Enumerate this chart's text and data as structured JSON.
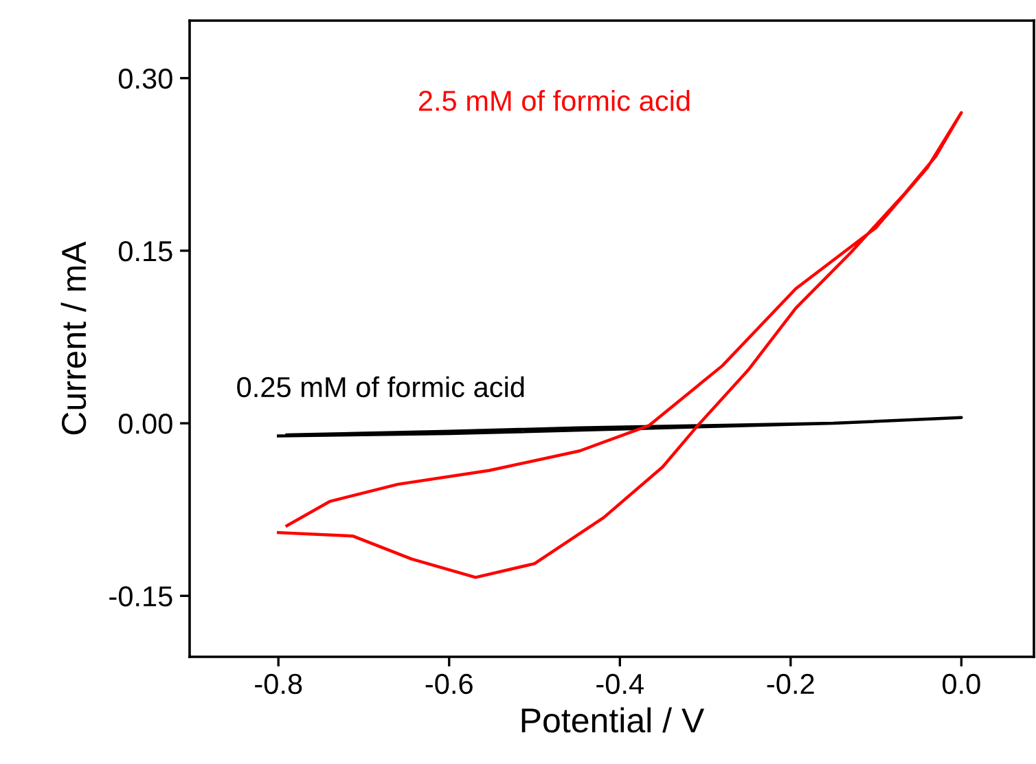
{
  "chart_data": {
    "type": "line",
    "xlabel": "Potential / V",
    "ylabel": "Current / mA",
    "xlim": [
      -0.904,
      0.085
    ],
    "xticks": [
      {
        "value": -0.8,
        "label": "-0.8"
      },
      {
        "value": -0.6,
        "label": "-0.6"
      },
      {
        "value": -0.4,
        "label": "-0.4"
      },
      {
        "value": -0.2,
        "label": "-0.2"
      },
      {
        "value": 0.0,
        "label": "0.0"
      }
    ],
    "ylim": [
      -0.203,
      0.35
    ],
    "yticks": [
      {
        "value": -0.15,
        "label": "-0.15"
      },
      {
        "value": 0.0,
        "label": "0.00"
      },
      {
        "value": 0.15,
        "label": "0.15"
      },
      {
        "value": 0.3,
        "label": "0.30"
      }
    ],
    "grid": false,
    "legend": false,
    "marker": "none",
    "line_style": "solid",
    "series": [
      {
        "name": "0.25 mM of formic acid",
        "color": "#000000",
        "x": [
          -0.8,
          -0.6,
          -0.4,
          -0.3,
          -0.15,
          0.0,
          -0.15,
          -0.3,
          -0.45,
          -0.6,
          -0.79
        ],
        "values": [
          -0.011,
          -0.009,
          -0.005,
          -0.003,
          0.0,
          0.005,
          0.0,
          -0.002,
          -0.004,
          -0.007,
          -0.01
        ]
      },
      {
        "name": "2.5 mM of formic acid",
        "color": "#ff0000",
        "x": [
          -0.8,
          -0.713,
          -0.644,
          -0.569,
          -0.5,
          -0.419,
          -0.35,
          -0.31,
          -0.25,
          -0.194,
          -0.13,
          -0.066,
          -0.03,
          0.0,
          -0.04,
          -0.1,
          -0.194,
          -0.28,
          -0.366,
          -0.447,
          -0.553,
          -0.66,
          -0.74,
          -0.79
        ],
        "values": [
          -0.095,
          -0.098,
          -0.118,
          -0.134,
          -0.122,
          -0.082,
          -0.038,
          -0.003,
          0.046,
          0.1,
          0.148,
          0.2,
          0.232,
          0.27,
          0.222,
          0.17,
          0.117,
          0.05,
          -0.002,
          -0.024,
          -0.041,
          -0.053,
          -0.068,
          -0.089
        ]
      }
    ]
  }
}
